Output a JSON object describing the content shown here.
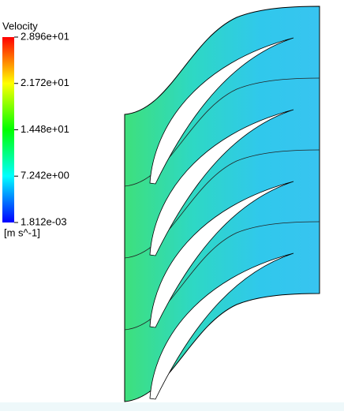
{
  "legend": {
    "title": "Velocity",
    "ticks": [
      {
        "value": 28.96,
        "label": "2.896e+01"
      },
      {
        "value": 21.72,
        "label": "2.172e+01"
      },
      {
        "value": 14.48,
        "label": "1.448e+01"
      },
      {
        "value": 7.242,
        "label": "7.242e+00"
      },
      {
        "value": 0.001812,
        "label": "1.812e-03"
      }
    ],
    "unit": "[m s^-1]"
  }
}
